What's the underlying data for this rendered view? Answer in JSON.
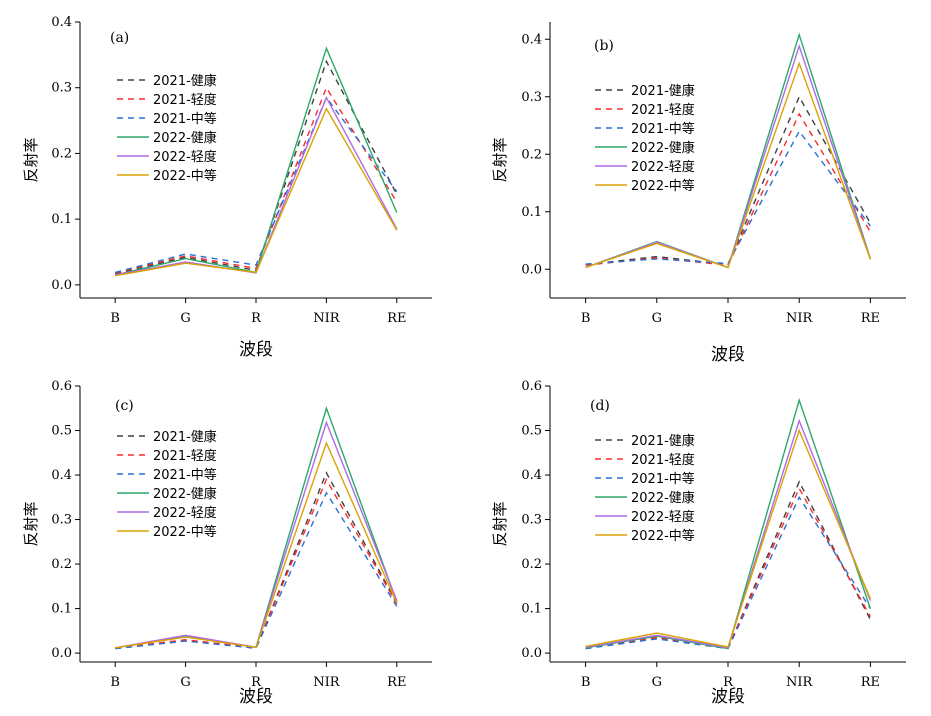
{
  "chart_data": [
    {
      "type": "line",
      "panel_label": "(a)",
      "categories": [
        "B",
        "G",
        "R",
        "NIR",
        "RE"
      ],
      "xlabel": "波段",
      "ylabel": "反射率",
      "ylim": [
        -0.02,
        0.4
      ],
      "yticks": [
        0.0,
        0.1,
        0.2,
        0.3,
        0.4
      ],
      "ytick_labels": [
        "0.0",
        "0.1",
        "0.2",
        "0.3",
        "0.4"
      ],
      "legend_position": "left",
      "series": [
        {
          "name": "2021-健康",
          "style": "dashed",
          "color": "#404040",
          "values": [
            0.017,
            0.042,
            0.022,
            0.34,
            0.138
          ]
        },
        {
          "name": "2021-轻度",
          "style": "dashed",
          "color": "#ff2a2a",
          "values": [
            0.018,
            0.044,
            0.025,
            0.3,
            0.126
          ]
        },
        {
          "name": "2021-中等",
          "style": "dashed",
          "color": "#2a6fd6",
          "values": [
            0.019,
            0.047,
            0.03,
            0.285,
            0.142
          ]
        },
        {
          "name": "2022-健康",
          "style": "solid",
          "color": "#2ca868",
          "values": [
            0.015,
            0.04,
            0.019,
            0.36,
            0.11
          ]
        },
        {
          "name": "2022-轻度",
          "style": "solid",
          "color": "#b06ae6",
          "values": [
            0.015,
            0.035,
            0.018,
            0.285,
            0.085
          ]
        },
        {
          "name": "2022-中等",
          "style": "solid",
          "color": "#d9a300",
          "values": [
            0.014,
            0.033,
            0.019,
            0.268,
            0.083
          ]
        }
      ]
    },
    {
      "type": "line",
      "panel_label": "(b)",
      "categories": [
        "B",
        "G",
        "R",
        "NIR",
        "RE"
      ],
      "xlabel": "波段",
      "ylabel": "反射率",
      "ylim": [
        -0.05,
        0.43
      ],
      "yticks": [
        0.0,
        0.1,
        0.2,
        0.3,
        0.4
      ],
      "ytick_labels": [
        "0.0",
        "0.1",
        "0.2",
        "0.3",
        "0.4"
      ],
      "legend_position": "left",
      "series": [
        {
          "name": "2021-健康",
          "style": "dashed",
          "color": "#404040",
          "values": [
            0.008,
            0.022,
            0.008,
            0.3,
            0.08
          ]
        },
        {
          "name": "2021-轻度",
          "style": "dashed",
          "color": "#ff2a2a",
          "values": [
            0.007,
            0.02,
            0.007,
            0.27,
            0.065
          ]
        },
        {
          "name": "2021-中等",
          "style": "dashed",
          "color": "#2a6fd6",
          "values": [
            0.009,
            0.018,
            0.01,
            0.24,
            0.075
          ]
        },
        {
          "name": "2022-健康",
          "style": "solid",
          "color": "#2ca868",
          "values": [
            0.003,
            0.048,
            0.003,
            0.408,
            0.018
          ]
        },
        {
          "name": "2022-轻度",
          "style": "solid",
          "color": "#b06ae6",
          "values": [
            0.003,
            0.047,
            0.003,
            0.388,
            0.018
          ]
        },
        {
          "name": "2022-中等",
          "style": "solid",
          "color": "#d9a300",
          "values": [
            0.003,
            0.045,
            0.003,
            0.358,
            0.017
          ]
        }
      ]
    },
    {
      "type": "line",
      "panel_label": "(c)",
      "categories": [
        "B",
        "G",
        "R",
        "NIR",
        "RE"
      ],
      "xlabel": "波段",
      "ylabel": "反射率",
      "ylim": [
        -0.02,
        0.6
      ],
      "yticks": [
        0.0,
        0.1,
        0.2,
        0.3,
        0.4,
        0.5,
        0.6
      ],
      "ytick_labels": [
        "0.0",
        "0.1",
        "0.2",
        "0.3",
        "0.4",
        "0.5",
        "0.6"
      ],
      "legend_position": "left",
      "series": [
        {
          "name": "2021-健康",
          "style": "dashed",
          "color": "#404040",
          "values": [
            0.01,
            0.028,
            0.011,
            0.405,
            0.112
          ]
        },
        {
          "name": "2021-轻度",
          "style": "dashed",
          "color": "#ff2a2a",
          "values": [
            0.011,
            0.03,
            0.012,
            0.39,
            0.11
          ]
        },
        {
          "name": "2021-中等",
          "style": "dashed",
          "color": "#2a6fd6",
          "values": [
            0.01,
            0.027,
            0.011,
            0.36,
            0.105
          ]
        },
        {
          "name": "2022-健康",
          "style": "solid",
          "color": "#2ca868",
          "values": [
            0.012,
            0.037,
            0.013,
            0.55,
            0.115
          ]
        },
        {
          "name": "2022-轻度",
          "style": "solid",
          "color": "#b06ae6",
          "values": [
            0.012,
            0.04,
            0.013,
            0.518,
            0.118
          ]
        },
        {
          "name": "2022-中等",
          "style": "solid",
          "color": "#d9a300",
          "values": [
            0.012,
            0.036,
            0.013,
            0.472,
            0.112
          ]
        }
      ]
    },
    {
      "type": "line",
      "panel_label": "(d)",
      "categories": [
        "B",
        "G",
        "R",
        "NIR",
        "RE"
      ],
      "xlabel": "波段",
      "ylabel": "反射率",
      "ylim": [
        -0.02,
        0.6
      ],
      "yticks": [
        0.0,
        0.1,
        0.2,
        0.3,
        0.4,
        0.5,
        0.6
      ],
      "ytick_labels": [
        "0.0",
        "0.1",
        "0.2",
        "0.3",
        "0.4",
        "0.5",
        "0.6"
      ],
      "legend_position": "left",
      "series": [
        {
          "name": "2021-健康",
          "style": "dashed",
          "color": "#404040",
          "values": [
            0.01,
            0.034,
            0.011,
            0.385,
            0.075
          ]
        },
        {
          "name": "2021-轻度",
          "style": "dashed",
          "color": "#ff2a2a",
          "values": [
            0.011,
            0.035,
            0.012,
            0.37,
            0.082
          ]
        },
        {
          "name": "2021-中等",
          "style": "dashed",
          "color": "#2a6fd6",
          "values": [
            0.01,
            0.032,
            0.01,
            0.35,
            0.1
          ]
        },
        {
          "name": "2022-健康",
          "style": "solid",
          "color": "#2ca868",
          "values": [
            0.012,
            0.038,
            0.01,
            0.568,
            0.1
          ]
        },
        {
          "name": "2022-轻度",
          "style": "solid",
          "color": "#b06ae6",
          "values": [
            0.013,
            0.04,
            0.012,
            0.522,
            0.118
          ]
        },
        {
          "name": "2022-中等",
          "style": "solid",
          "color": "#d9a300",
          "values": [
            0.015,
            0.045,
            0.014,
            0.5,
            0.122
          ]
        }
      ]
    }
  ]
}
